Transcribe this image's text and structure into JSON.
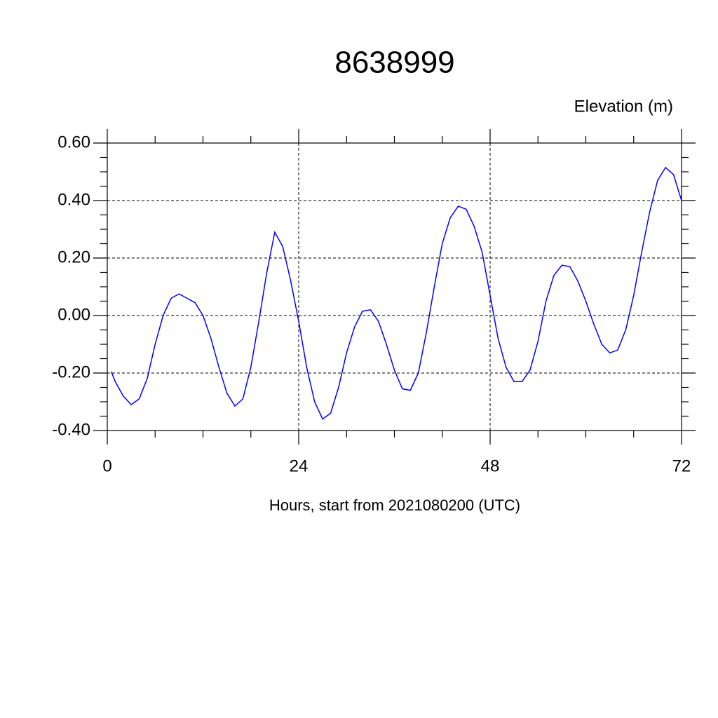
{
  "chart_data": {
    "type": "line",
    "title": "8638999",
    "subtitle": "Elevation (m)",
    "x_label": "Hours, start from 2021080200 (UTC)",
    "x": [
      0.5,
      1,
      2,
      3,
      4,
      5,
      6,
      7,
      8,
      9,
      10,
      11,
      12,
      13,
      14,
      15,
      16,
      17,
      18,
      19,
      20,
      21,
      22,
      23,
      24,
      25,
      26,
      27,
      28,
      29,
      30,
      31,
      32,
      33,
      34,
      35,
      36,
      37,
      38,
      39,
      40,
      41,
      42,
      43,
      44,
      45,
      46,
      47,
      48,
      49,
      50,
      51,
      52,
      53,
      54,
      55,
      56,
      57,
      58,
      59,
      60,
      61,
      62,
      63,
      64,
      65,
      66,
      67,
      68,
      69,
      70,
      71,
      72
    ],
    "series": [
      {
        "name": "Elevation",
        "color": "#0000ff",
        "values": [
          -0.195,
          -0.23,
          -0.28,
          -0.31,
          -0.29,
          -0.22,
          -0.1,
          0.0,
          0.06,
          0.075,
          0.06,
          0.045,
          0.0,
          -0.08,
          -0.18,
          -0.27,
          -0.315,
          -0.29,
          -0.18,
          -0.02,
          0.15,
          0.29,
          0.24,
          0.12,
          -0.02,
          -0.18,
          -0.3,
          -0.36,
          -0.34,
          -0.25,
          -0.13,
          -0.04,
          0.015,
          0.02,
          -0.02,
          -0.1,
          -0.19,
          -0.255,
          -0.26,
          -0.2,
          -0.06,
          0.1,
          0.25,
          0.34,
          0.38,
          0.37,
          0.31,
          0.22,
          0.07,
          -0.08,
          -0.18,
          -0.23,
          -0.23,
          -0.19,
          -0.09,
          0.05,
          0.14,
          0.175,
          0.17,
          0.12,
          0.05,
          -0.03,
          -0.1,
          -0.13,
          -0.12,
          -0.05,
          0.07,
          0.22,
          0.36,
          0.47,
          0.515,
          0.49,
          0.4
        ]
      }
    ],
    "xlim": [
      0,
      72
    ],
    "xticks": [
      0,
      24,
      48,
      72
    ],
    "xminorticks": [
      6,
      12,
      18,
      30,
      36,
      42,
      54,
      60,
      66
    ],
    "ylim": [
      -0.4,
      0.6
    ],
    "yticks": [
      {
        "value": -0.4,
        "label": "-0.40"
      },
      {
        "value": -0.2,
        "label": "-0.20"
      },
      {
        "value": 0,
        "label": "0.00"
      },
      {
        "value": 0.2,
        "label": "0.20"
      },
      {
        "value": 0.4,
        "label": "0.40"
      },
      {
        "value": 0.6,
        "label": "0.60"
      }
    ],
    "yminorticks": [
      -0.35,
      -0.3,
      -0.25,
      -0.15,
      -0.1,
      -0.05,
      0.05,
      0.1,
      0.15,
      0.25,
      0.3,
      0.35,
      0.45,
      0.5,
      0.55
    ],
    "grid": true
  }
}
